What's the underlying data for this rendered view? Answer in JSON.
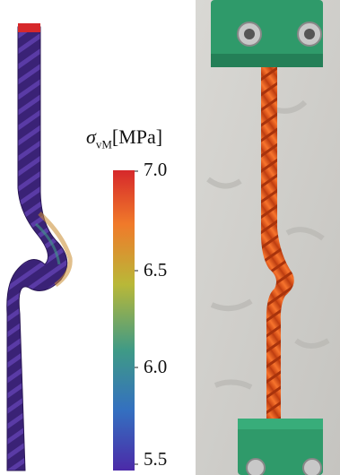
{
  "colorbar": {
    "symbol": "σ",
    "subscript": "vM",
    "unit": "[MPa]",
    "ticks": [
      "7.0",
      "6.5",
      "6.0",
      "5.5"
    ],
    "min": 5.5,
    "max": 7.0,
    "colors": [
      "#d6282b",
      "#f07a2a",
      "#b9b838",
      "#3f9a86",
      "#3470c0",
      "#4b2aa8"
    ]
  },
  "panels": {
    "left": "simulated twisted rod colored by von Mises stress",
    "right": "photograph of printed orange rod in green clamps"
  }
}
